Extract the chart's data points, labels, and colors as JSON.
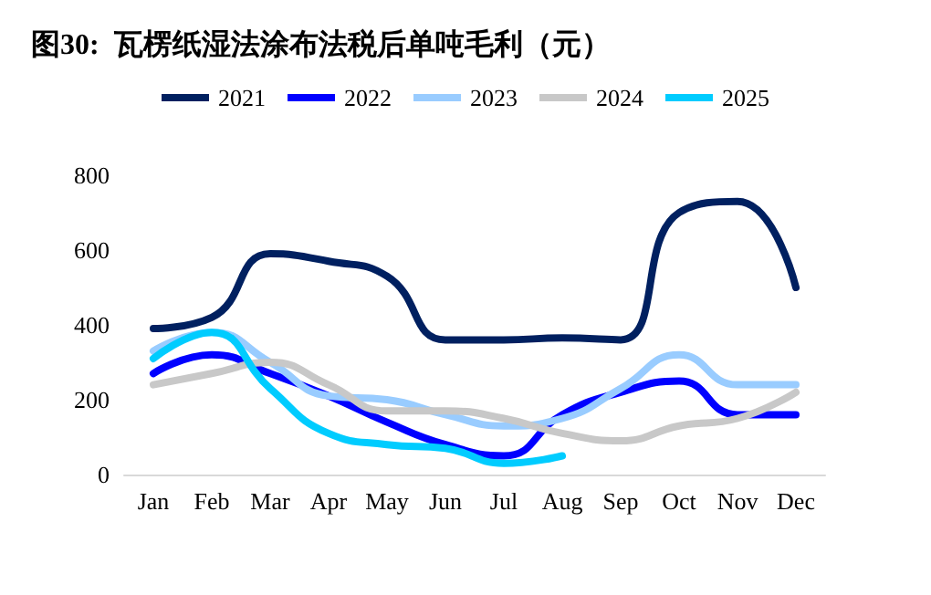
{
  "chart_data": {
    "type": "line",
    "title": "图30:  瓦楞纸湿法涂布法税后单吨毛利（元）",
    "categories": [
      "Jan",
      "Feb",
      "Mar",
      "Apr",
      "May",
      "Jun",
      "Jul",
      "Aug",
      "Sep",
      "Oct",
      "Nov",
      "Dec"
    ],
    "series": [
      {
        "name": "2021",
        "color": "#002060",
        "values": [
          390,
          420,
          590,
          570,
          530,
          360,
          360,
          365,
          360,
          700,
          730,
          500
        ]
      },
      {
        "name": "2022",
        "color": "#0000ff",
        "values": [
          270,
          320,
          270,
          210,
          140,
          80,
          50,
          160,
          220,
          250,
          160,
          160
        ]
      },
      {
        "name": "2023",
        "color": "#99ccff",
        "values": [
          330,
          380,
          300,
          210,
          200,
          160,
          130,
          150,
          230,
          320,
          240,
          240
        ]
      },
      {
        "name": "2024",
        "color": "#c8c8c8",
        "values": [
          240,
          270,
          300,
          240,
          170,
          170,
          150,
          110,
          90,
          130,
          150,
          220
        ]
      },
      {
        "name": "2025",
        "color": "#00ccff",
        "values": [
          310,
          380,
          230,
          110,
          80,
          70,
          30,
          50,
          null,
          null,
          null,
          null
        ]
      }
    ],
    "ylim": [
      0,
      800
    ],
    "yticks": [
      0,
      200,
      400,
      600,
      800
    ],
    "grid": false,
    "legend": "top",
    "marker": "none",
    "line_style": "solid"
  }
}
